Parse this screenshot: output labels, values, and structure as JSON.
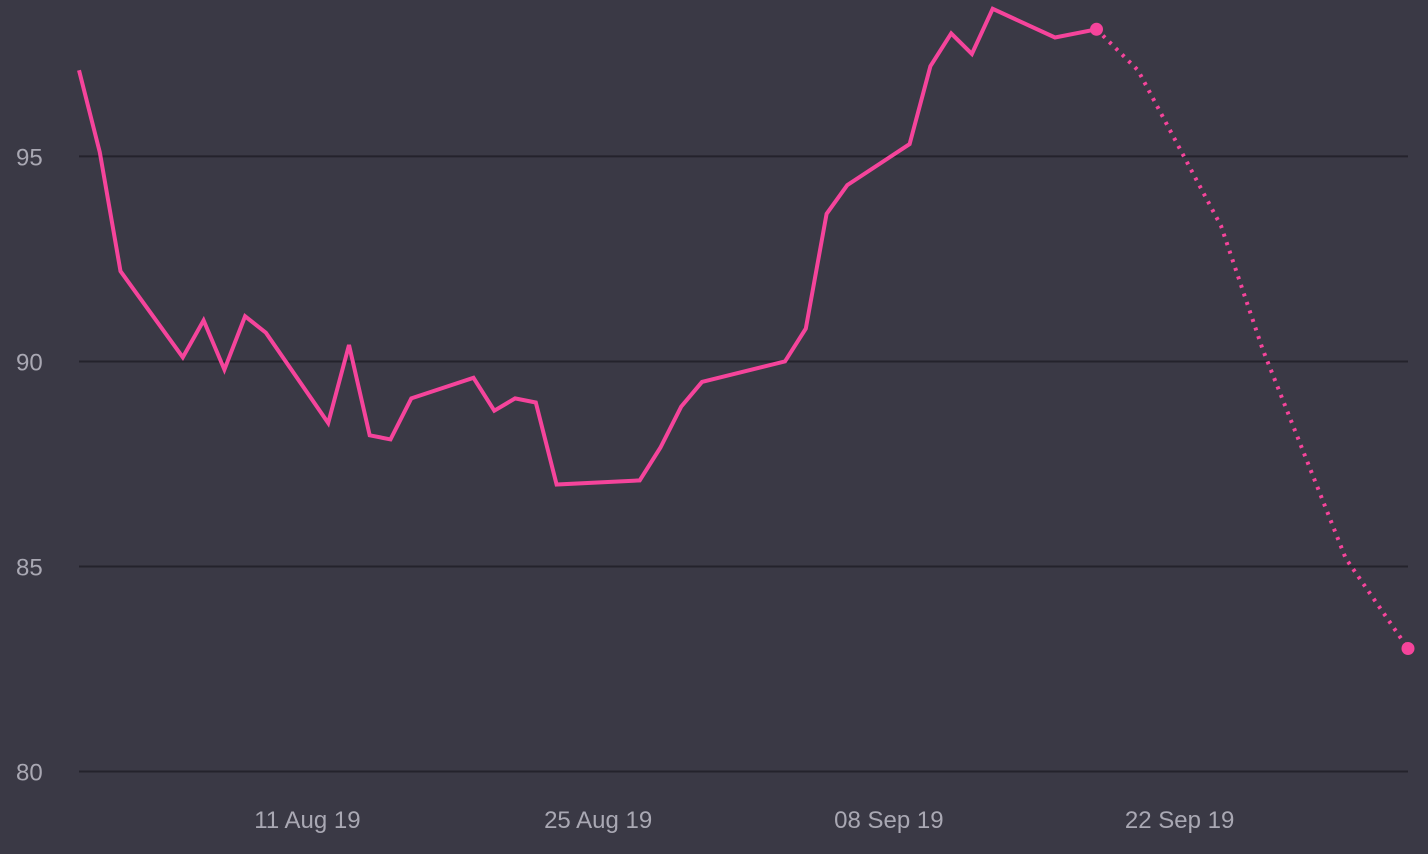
{
  "colors": {
    "background": "#3a3945",
    "series": "#f5449b",
    "gridline": "#24232c",
    "tick_text": "#a9a8b3"
  },
  "chart_data": {
    "type": "line",
    "title": "",
    "xlabel": "",
    "ylabel": "",
    "x_tick_labels": [
      "11 Aug 19",
      "25 Aug 19",
      "08 Sep 19",
      "22 Sep 19"
    ],
    "x_tick_dates": [
      "2019-08-11",
      "2019-08-25",
      "2019-09-08",
      "2019-09-22"
    ],
    "xlim": [
      "2019-07-31",
      "2019-10-03"
    ],
    "y_ticks": [
      80,
      85,
      90,
      95
    ],
    "ylim": [
      80,
      98.4
    ],
    "grid": "horizontal",
    "series": [
      {
        "style": "solid",
        "points": [
          {
            "x": "2019-07-31",
            "y": 97.1
          },
          {
            "x": "2019-08-01",
            "y": 95.1
          },
          {
            "x": "2019-08-02",
            "y": 92.2
          },
          {
            "x": "2019-08-05",
            "y": 90.1
          },
          {
            "x": "2019-08-06",
            "y": 91.0
          },
          {
            "x": "2019-08-07",
            "y": 89.8
          },
          {
            "x": "2019-08-08",
            "y": 91.1
          },
          {
            "x": "2019-08-09",
            "y": 90.7
          },
          {
            "x": "2019-08-12",
            "y": 88.5
          },
          {
            "x": "2019-08-13",
            "y": 90.4
          },
          {
            "x": "2019-08-14",
            "y": 88.2
          },
          {
            "x": "2019-08-15",
            "y": 88.1
          },
          {
            "x": "2019-08-16",
            "y": 89.1
          },
          {
            "x": "2019-08-19",
            "y": 89.6
          },
          {
            "x": "2019-08-20",
            "y": 88.8
          },
          {
            "x": "2019-08-21",
            "y": 89.1
          },
          {
            "x": "2019-08-22",
            "y": 89.0
          },
          {
            "x": "2019-08-23",
            "y": 87.0
          },
          {
            "x": "2019-08-27",
            "y": 87.1
          },
          {
            "x": "2019-08-28",
            "y": 87.9
          },
          {
            "x": "2019-08-29",
            "y": 88.9
          },
          {
            "x": "2019-08-30",
            "y": 89.5
          },
          {
            "x": "2019-09-03",
            "y": 90.0
          },
          {
            "x": "2019-09-04",
            "y": 90.8
          },
          {
            "x": "2019-09-05",
            "y": 93.6
          },
          {
            "x": "2019-09-06",
            "y": 94.3
          },
          {
            "x": "2019-09-09",
            "y": 95.3
          },
          {
            "x": "2019-09-10",
            "y": 97.2
          },
          {
            "x": "2019-09-11",
            "y": 98.0
          },
          {
            "x": "2019-09-12",
            "y": 97.5
          },
          {
            "x": "2019-09-13",
            "y": 98.6
          },
          {
            "x": "2019-09-16",
            "y": 97.9
          },
          {
            "x": "2019-09-18",
            "y": 98.1
          }
        ]
      },
      {
        "style": "dotted",
        "points": [
          {
            "x": "2019-09-18",
            "y": 98.1
          },
          {
            "x": "2019-09-20",
            "y": 97.1
          },
          {
            "x": "2019-09-24",
            "y": 93.3
          },
          {
            "x": "2019-09-26",
            "y": 90.3
          },
          {
            "x": "2019-09-30",
            "y": 85.2
          },
          {
            "x": "2019-10-03",
            "y": 83.0
          }
        ]
      }
    ],
    "markers": [
      {
        "x": "2019-09-18",
        "y": 98.1
      },
      {
        "x": "2019-10-03",
        "y": 83.0
      }
    ]
  }
}
